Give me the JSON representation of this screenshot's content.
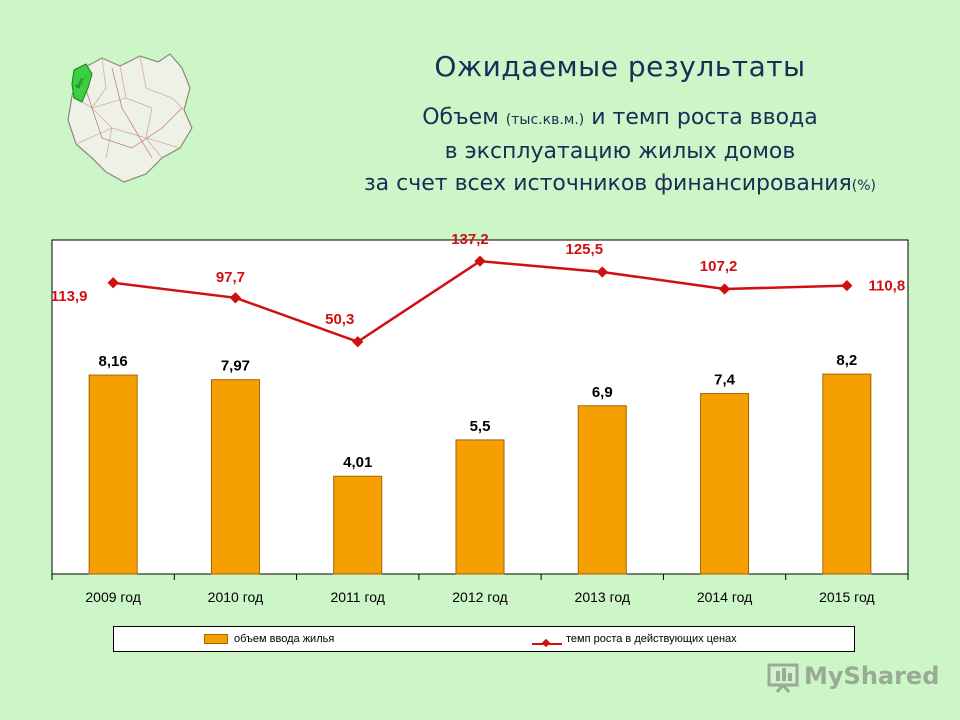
{
  "header": {
    "title": "Ожидаемые результаты",
    "subtitle": {
      "part1": "Объем ",
      "unit1": "(тыс.кв.м.)",
      "part2": " и темп роста ввода",
      "line2": "в эксплуатацию жилых домов",
      "line3": "за счет всех источников финансирования",
      "unit3": "(%)"
    }
  },
  "map": {
    "region_label": "Бол..."
  },
  "chart_data": {
    "type": "bar",
    "categories": [
      "2009 год",
      "2010 год",
      "2011 год",
      "2012 год",
      "2013 год",
      "2014 год",
      "2015 год"
    ],
    "series": [
      {
        "name": "объем ввода жилья",
        "type": "bar",
        "values": [
          8.16,
          7.97,
          4.01,
          5.5,
          6.9,
          7.4,
          8.2
        ],
        "labels": [
          "8,16",
          "7,97",
          "4,01",
          "5,5",
          "6,9",
          "7,4",
          "8,2"
        ],
        "color": "#f5a000"
      },
      {
        "name": "темп роста в действующих ценах",
        "type": "line",
        "values": [
          113.9,
          97.7,
          50.3,
          137.2,
          125.5,
          107.2,
          110.8
        ],
        "labels": [
          "113,9",
          "97,7",
          "50,3",
          "137,2",
          "125,5",
          "107,2",
          "110,8"
        ],
        "color": "#d01010"
      }
    ],
    "bar_ylim": [
      0,
      13.7
    ],
    "line_ylim": [
      -200,
      160
    ],
    "grid": false,
    "legend_position": "bottom"
  },
  "watermark": {
    "text": "MyShared"
  }
}
